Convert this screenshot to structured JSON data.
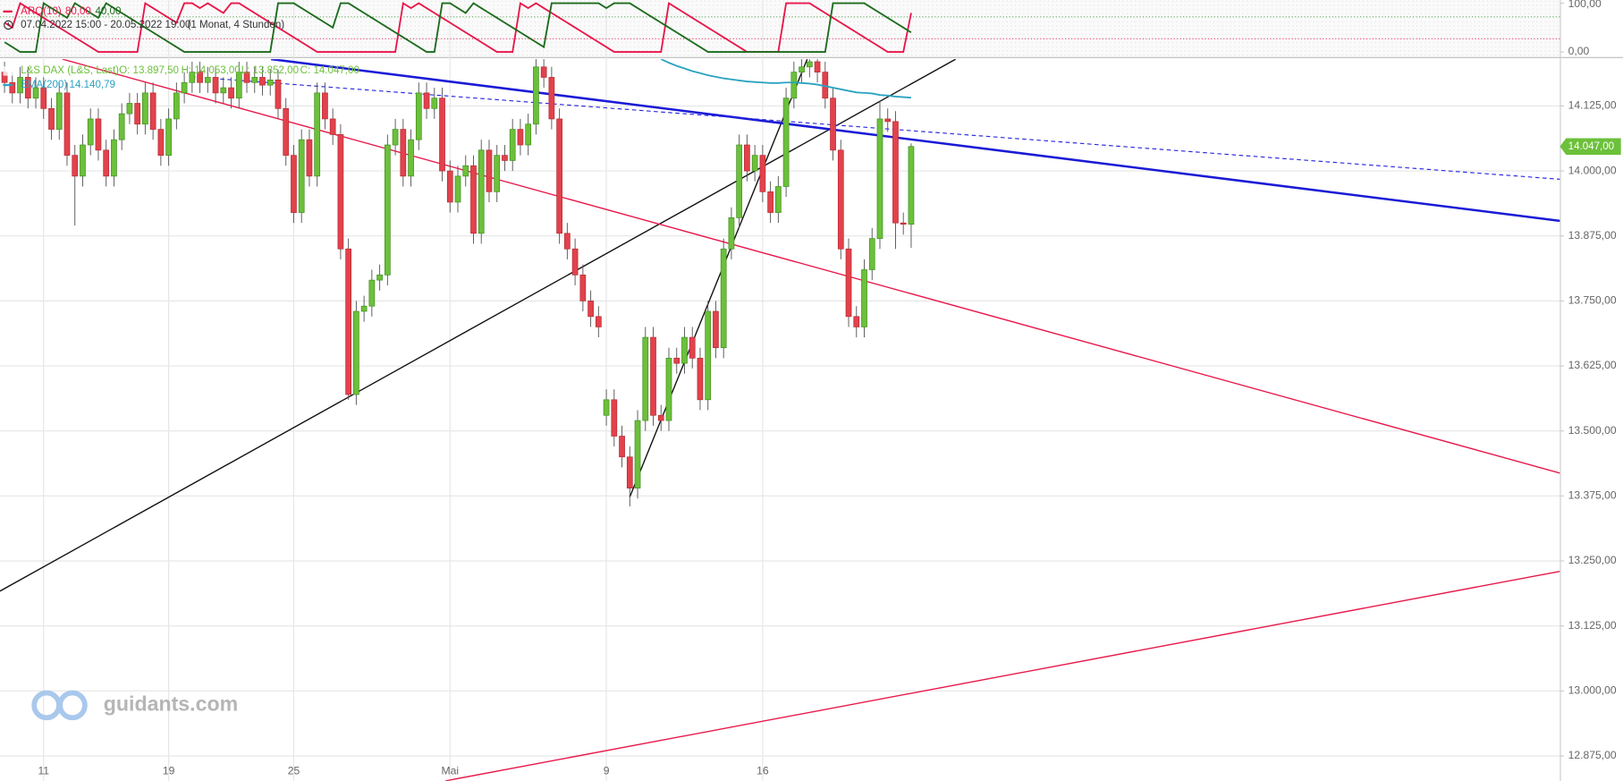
{
  "chart_data": [
    {
      "type": "line",
      "indicator": "ARO(10)",
      "period": "07.04.2022 15:00 - 20.05.2022 19:00",
      "interval": "(1 Monat, 4 Stunden)",
      "ylim": [
        -10.6,
        106.4
      ],
      "yticks": [
        {
          "value": 100,
          "label": "100,00"
        },
        {
          "value": 0,
          "label": "0,00"
        }
      ],
      "levels": [
        {
          "value": 72,
          "color": "#3c9a3c"
        },
        {
          "value": 27,
          "color": "#e8174a"
        }
      ],
      "series": [
        {
          "label": "80,00",
          "color": "#e8174a",
          "values": [
            60,
            50,
            100,
            90,
            80,
            70,
            60,
            50,
            40,
            30,
            20,
            10,
            0,
            0,
            0,
            0,
            0,
            0,
            100,
            90,
            80,
            70,
            60,
            100,
            100,
            90,
            100,
            90,
            80,
            100,
            100,
            90,
            80,
            70,
            60,
            50,
            40,
            30,
            20,
            10,
            0,
            0,
            0,
            0,
            0,
            0,
            0,
            0,
            0,
            0,
            0,
            100,
            90,
            100,
            90,
            80,
            70,
            60,
            50,
            40,
            30,
            20,
            10,
            0,
            0,
            0,
            100,
            90,
            100,
            90,
            80,
            70,
            60,
            50,
            40,
            30,
            20,
            10,
            0,
            0,
            0,
            0,
            0,
            0,
            0,
            100,
            90,
            80,
            70,
            60,
            50,
            40,
            30,
            20,
            10,
            0,
            0,
            0,
            0,
            0,
            100,
            100,
            100,
            100,
            90,
            80,
            70,
            60,
            50,
            40,
            30,
            20,
            10,
            0,
            0,
            0,
            80
          ]
        },
        {
          "label": "40,00",
          "color": "#1d6b1d",
          "values": [
            20,
            10,
            0,
            0,
            0,
            100,
            90,
            80,
            70,
            100,
            90,
            80,
            70,
            100,
            90,
            80,
            70,
            60,
            50,
            40,
            30,
            20,
            10,
            0,
            0,
            0,
            0,
            0,
            0,
            0,
            0,
            0,
            0,
            0,
            0,
            100,
            100,
            100,
            90,
            80,
            70,
            60,
            50,
            100,
            100,
            90,
            80,
            70,
            60,
            50,
            40,
            30,
            20,
            10,
            0,
            0,
            100,
            100,
            90,
            80,
            100,
            90,
            80,
            70,
            60,
            50,
            40,
            30,
            20,
            10,
            100,
            100,
            100,
            100,
            100,
            100,
            100,
            90,
            100,
            100,
            100,
            90,
            80,
            70,
            60,
            50,
            40,
            30,
            20,
            10,
            0,
            0,
            0,
            0,
            0,
            0,
            0,
            0,
            0,
            0,
            0,
            0,
            0,
            0,
            0,
            0,
            100,
            100,
            100,
            100,
            100,
            90,
            80,
            70,
            60,
            50,
            40
          ]
        }
      ]
    },
    {
      "type": "candlestick",
      "instrument": "L&S DAX (L&S, Last)",
      "ohlc_labels": [
        "O: 13.897,50",
        "H: 14.053,00",
        "L: 13.852,00",
        "C: 14.047,00"
      ],
      "last_price_label": "14.047,00",
      "up_color": "#6cc03a",
      "down_color": "#e2424c",
      "xlim": [
        -0.58,
        199
      ],
      "ylim": [
        12827,
        14215
      ],
      "yticks": [
        {
          "value": 14125,
          "label": "14.125,00"
        },
        {
          "value": 14000,
          "label": "14.000,00"
        },
        {
          "value": 13875,
          "label": "13.875,00"
        },
        {
          "value": 13750,
          "label": "13.750,00"
        },
        {
          "value": 13625,
          "label": "13.625,00"
        },
        {
          "value": 13500,
          "label": "13.500,00"
        },
        {
          "value": 13375,
          "label": "13.375,00"
        },
        {
          "value": 13250,
          "label": "13.250,00"
        },
        {
          "value": 13125,
          "label": "13.125,00"
        },
        {
          "value": 13000,
          "label": "13.000,00"
        },
        {
          "value": 12875,
          "label": "12.875,00"
        }
      ],
      "grid": true,
      "categories": [
        null,
        null,
        null,
        null,
        null,
        "11",
        null,
        null,
        null,
        null,
        null,
        null,
        null,
        null,
        null,
        null,
        null,
        null,
        null,
        null,
        null,
        "19",
        null,
        null,
        null,
        null,
        null,
        null,
        null,
        null,
        null,
        null,
        null,
        null,
        null,
        null,
        null,
        "25",
        null,
        null,
        null,
        null,
        null,
        null,
        null,
        null,
        null,
        null,
        null,
        null,
        null,
        null,
        null,
        null,
        null,
        null,
        null,
        "Mai",
        null,
        null,
        null,
        null,
        null,
        null,
        null,
        null,
        null,
        null,
        null,
        null,
        null,
        null,
        null,
        null,
        null,
        null,
        null,
        "9",
        null,
        null,
        null,
        null,
        null,
        null,
        null,
        null,
        null,
        null,
        null,
        null,
        null,
        null,
        null,
        null,
        null,
        null,
        null,
        "16",
        null,
        null,
        null,
        null,
        null,
        null,
        null,
        null,
        null,
        null,
        null,
        null,
        null,
        null,
        null,
        null,
        null,
        null,
        null
      ],
      "open": [
        14190,
        14170,
        14150,
        14180,
        14140,
        14160,
        14120,
        14080,
        14150,
        14030,
        13990,
        14050,
        14100,
        14040,
        13990,
        14060,
        14110,
        14130,
        14090,
        14150,
        14080,
        14030,
        14100,
        14150,
        14170,
        14190,
        14170,
        14180,
        14150,
        14160,
        14140,
        14190,
        14170,
        14180,
        14165,
        14175,
        14120,
        14030,
        13920,
        14060,
        13990,
        14150,
        14100,
        14070,
        13850,
        13570,
        13730,
        13740,
        13790,
        13800,
        14050,
        14080,
        13990,
        14060,
        14150,
        14120,
        14140,
        14000,
        13940,
        13990,
        14010,
        13880,
        14040,
        13960,
        14030,
        14020,
        14080,
        14050,
        14090,
        14200,
        14180,
        14100,
        13880,
        13850,
        13800,
        13750,
        13720,
        13530,
        13560,
        13490,
        13450,
        13390,
        13520,
        13680,
        13530,
        13520,
        13640,
        13630,
        13680,
        13640,
        13560,
        13730,
        13660,
        13850,
        13910,
        14050,
        14000,
        14030,
        13960,
        13920,
        13970,
        14140,
        14190,
        14200,
        14210,
        14190,
        14140,
        14040,
        13850,
        13720,
        13700,
        13810,
        13870,
        14100,
        14095,
        13900,
        13897.5
      ],
      "high": [
        14210,
        14190,
        14200,
        14200,
        14180,
        14180,
        14140,
        14170,
        14170,
        14050,
        14070,
        14120,
        14120,
        14060,
        14080,
        14130,
        14150,
        14150,
        14170,
        14170,
        14100,
        14120,
        14170,
        14190,
        14210,
        14210,
        14200,
        14200,
        14180,
        14180,
        14210,
        14210,
        14200,
        14200,
        14195,
        14195,
        14140,
        14050,
        14080,
        14080,
        14170,
        14170,
        14120,
        14090,
        13870,
        13750,
        13760,
        13810,
        13820,
        14070,
        14100,
        14100,
        14080,
        14170,
        14170,
        14160,
        14160,
        14020,
        14010,
        14030,
        14030,
        14060,
        14060,
        14050,
        14050,
        14100,
        14100,
        14110,
        14220,
        14220,
        14200,
        14120,
        13900,
        13870,
        13820,
        13770,
        13740,
        13580,
        13580,
        13510,
        13470,
        13540,
        13700,
        13700,
        13550,
        13660,
        13660,
        13700,
        13700,
        13660,
        13750,
        13750,
        13870,
        13930,
        14070,
        14070,
        14050,
        14050,
        13980,
        13990,
        14160,
        14210,
        14220,
        14230,
        14230,
        14210,
        14160,
        14060,
        13870,
        13740,
        13830,
        13890,
        14135,
        14120,
        14115,
        13920,
        14053
      ],
      "low": [
        14150,
        14130,
        14130,
        14120,
        14120,
        14100,
        14060,
        14060,
        14010,
        13895,
        13970,
        14030,
        14020,
        13970,
        13970,
        14040,
        14090,
        14070,
        14070,
        14060,
        14010,
        14010,
        14080,
        14130,
        14150,
        14150,
        14150,
        14130,
        14130,
        14120,
        14120,
        14150,
        14150,
        14145,
        14145,
        14100,
        14010,
        13900,
        13900,
        13970,
        13970,
        14080,
        14050,
        13830,
        13560,
        13550,
        13710,
        13720,
        13770,
        13780,
        14030,
        13970,
        13970,
        14040,
        14100,
        14100,
        13980,
        13920,
        13920,
        13970,
        13860,
        13860,
        13940,
        13940,
        14000,
        14000,
        14030,
        14030,
        14070,
        14160,
        14080,
        13860,
        13830,
        13780,
        13730,
        13700,
        13680,
        13510,
        13470,
        13430,
        13355,
        13370,
        13500,
        13510,
        13500,
        13500,
        13610,
        13610,
        13620,
        13540,
        13540,
        13640,
        13640,
        13830,
        13890,
        13980,
        13980,
        13940,
        13900,
        13900,
        13950,
        14120,
        14170,
        14180,
        14170,
        14120,
        14020,
        13830,
        13700,
        13680,
        13680,
        13790,
        13850,
        14075,
        13850,
        13877.5,
        13852
      ],
      "close": [
        14170,
        14150,
        14180,
        14140,
        14160,
        14120,
        14080,
        14150,
        14030,
        13990,
        14050,
        14100,
        14040,
        13990,
        14060,
        14110,
        14130,
        14090,
        14150,
        14080,
        14030,
        14100,
        14150,
        14170,
        14190,
        14170,
        14180,
        14150,
        14160,
        14140,
        14190,
        14170,
        14180,
        14165,
        14175,
        14120,
        14030,
        13920,
        14060,
        13990,
        14150,
        14100,
        14070,
        13850,
        13570,
        13730,
        13740,
        13790,
        13800,
        14050,
        14080,
        13990,
        14060,
        14150,
        14120,
        14140,
        14000,
        13940,
        13990,
        14010,
        13880,
        14040,
        13960,
        14030,
        14020,
        14080,
        14050,
        14090,
        14200,
        14180,
        14100,
        13880,
        13850,
        13800,
        13750,
        13720,
        13700,
        13560,
        13490,
        13450,
        13390,
        13520,
        13680,
        13530,
        13520,
        13640,
        13630,
        13680,
        13640,
        13560,
        13730,
        13660,
        13850,
        13910,
        14050,
        14000,
        14030,
        13960,
        13920,
        13970,
        14140,
        14190,
        14200,
        14210,
        14190,
        14140,
        14040,
        13850,
        13720,
        13700,
        13810,
        13870,
        14100,
        14095,
        13900,
        13897.5,
        14047
      ],
      "ema": {
        "name": "EMA(200)",
        "label": "14.140,79",
        "color": "#2aa3c1",
        "values": [
          null,
          null,
          null,
          null,
          null,
          null,
          null,
          null,
          null,
          null,
          null,
          null,
          null,
          null,
          null,
          null,
          null,
          null,
          null,
          null,
          null,
          null,
          null,
          null,
          null,
          null,
          null,
          null,
          null,
          null,
          null,
          null,
          null,
          null,
          null,
          null,
          null,
          null,
          null,
          null,
          null,
          null,
          null,
          null,
          null,
          null,
          null,
          null,
          null,
          null,
          null,
          null,
          null,
          null,
          null,
          null,
          null,
          null,
          null,
          null,
          null,
          null,
          null,
          null,
          null,
          null,
          null,
          null,
          null,
          null,
          null,
          null,
          null,
          null,
          null,
          null,
          null,
          null,
          null,
          null,
          null,
          null,
          null,
          null,
          14215,
          14208,
          14202,
          14197,
          14192,
          14188,
          14184,
          14181,
          14178,
          14176,
          14174,
          14172,
          14171,
          14170,
          14169,
          14169,
          14170,
          14170,
          14169,
          14168,
          14166,
          14163,
          14160,
          14157,
          14154,
          14151,
          14150,
          14149,
          14146,
          14145,
          14143,
          14142,
          14140.79
        ]
      },
      "trendlines": [
        {
          "x": [
            -0.58,
            121.7
          ],
          "y": [
            13192,
            14215
          ],
          "color": "#111111",
          "width": 1.2,
          "dash": false
        },
        {
          "x": [
            80,
            102.7
          ],
          "y": [
            13373,
            14215
          ],
          "color": "#111111",
          "width": 1.2,
          "dash": false
        },
        {
          "x": [
            34.1,
            199
          ],
          "y": [
            14215,
            13904
          ],
          "color": "#1a1ad6",
          "width": 2.2,
          "dash": false
        },
        {
          "x": [
            23.9,
            199
          ],
          "y": [
            14181,
            13984
          ],
          "color": "#2a2ae0",
          "width": 1,
          "dash": true
        },
        {
          "x": [
            7.4,
            199
          ],
          "y": [
            14215,
            13419
          ],
          "color": "#e8174a",
          "width": 1.2,
          "dash": false
        },
        {
          "x": [
            56.4,
            199
          ],
          "y": [
            12827,
            13230
          ],
          "color": "#e8174a",
          "width": 1.2,
          "dash": false
        }
      ]
    }
  ],
  "watermark": "guidants.com"
}
